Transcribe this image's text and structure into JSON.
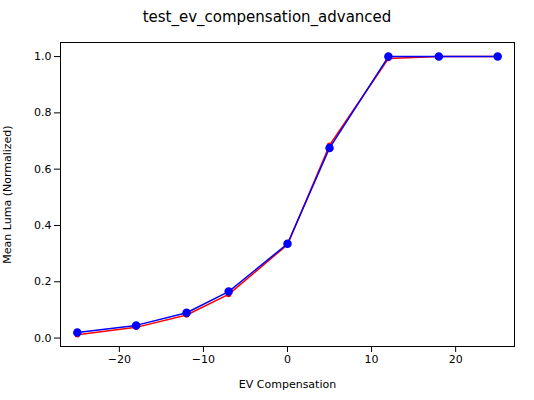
{
  "chart_data": {
    "type": "line",
    "title": "test_ev_compensation_advanced",
    "xlabel": "EV Compensation",
    "ylabel": "Mean Luma (Normalized)",
    "x": [
      -25,
      -18,
      -12,
      -7,
      0,
      5,
      12,
      18,
      25
    ],
    "series": [
      {
        "color": "blue",
        "marker": "circle",
        "values": [
          0.02,
          0.045,
          0.09,
          0.165,
          0.335,
          0.675,
          1.0,
          1.0,
          1.0
        ]
      },
      {
        "color": "red",
        "marker": "circle",
        "values": [
          0.012,
          0.038,
          0.082,
          0.155,
          0.332,
          0.685,
          0.993,
          1.0,
          1.0
        ]
      }
    ],
    "xlim": [
      -27,
      27
    ],
    "xticks": [
      -20,
      -10,
      0,
      10,
      20
    ],
    "ylim": [
      -0.03,
      1.05
    ],
    "yticks": [
      {
        "value": 0.0,
        "label": "0.0"
      },
      0.2,
      0.4,
      0.6,
      0.8,
      {
        "value": 1.0,
        "label": "1.0"
      }
    ],
    "grid": false
  }
}
